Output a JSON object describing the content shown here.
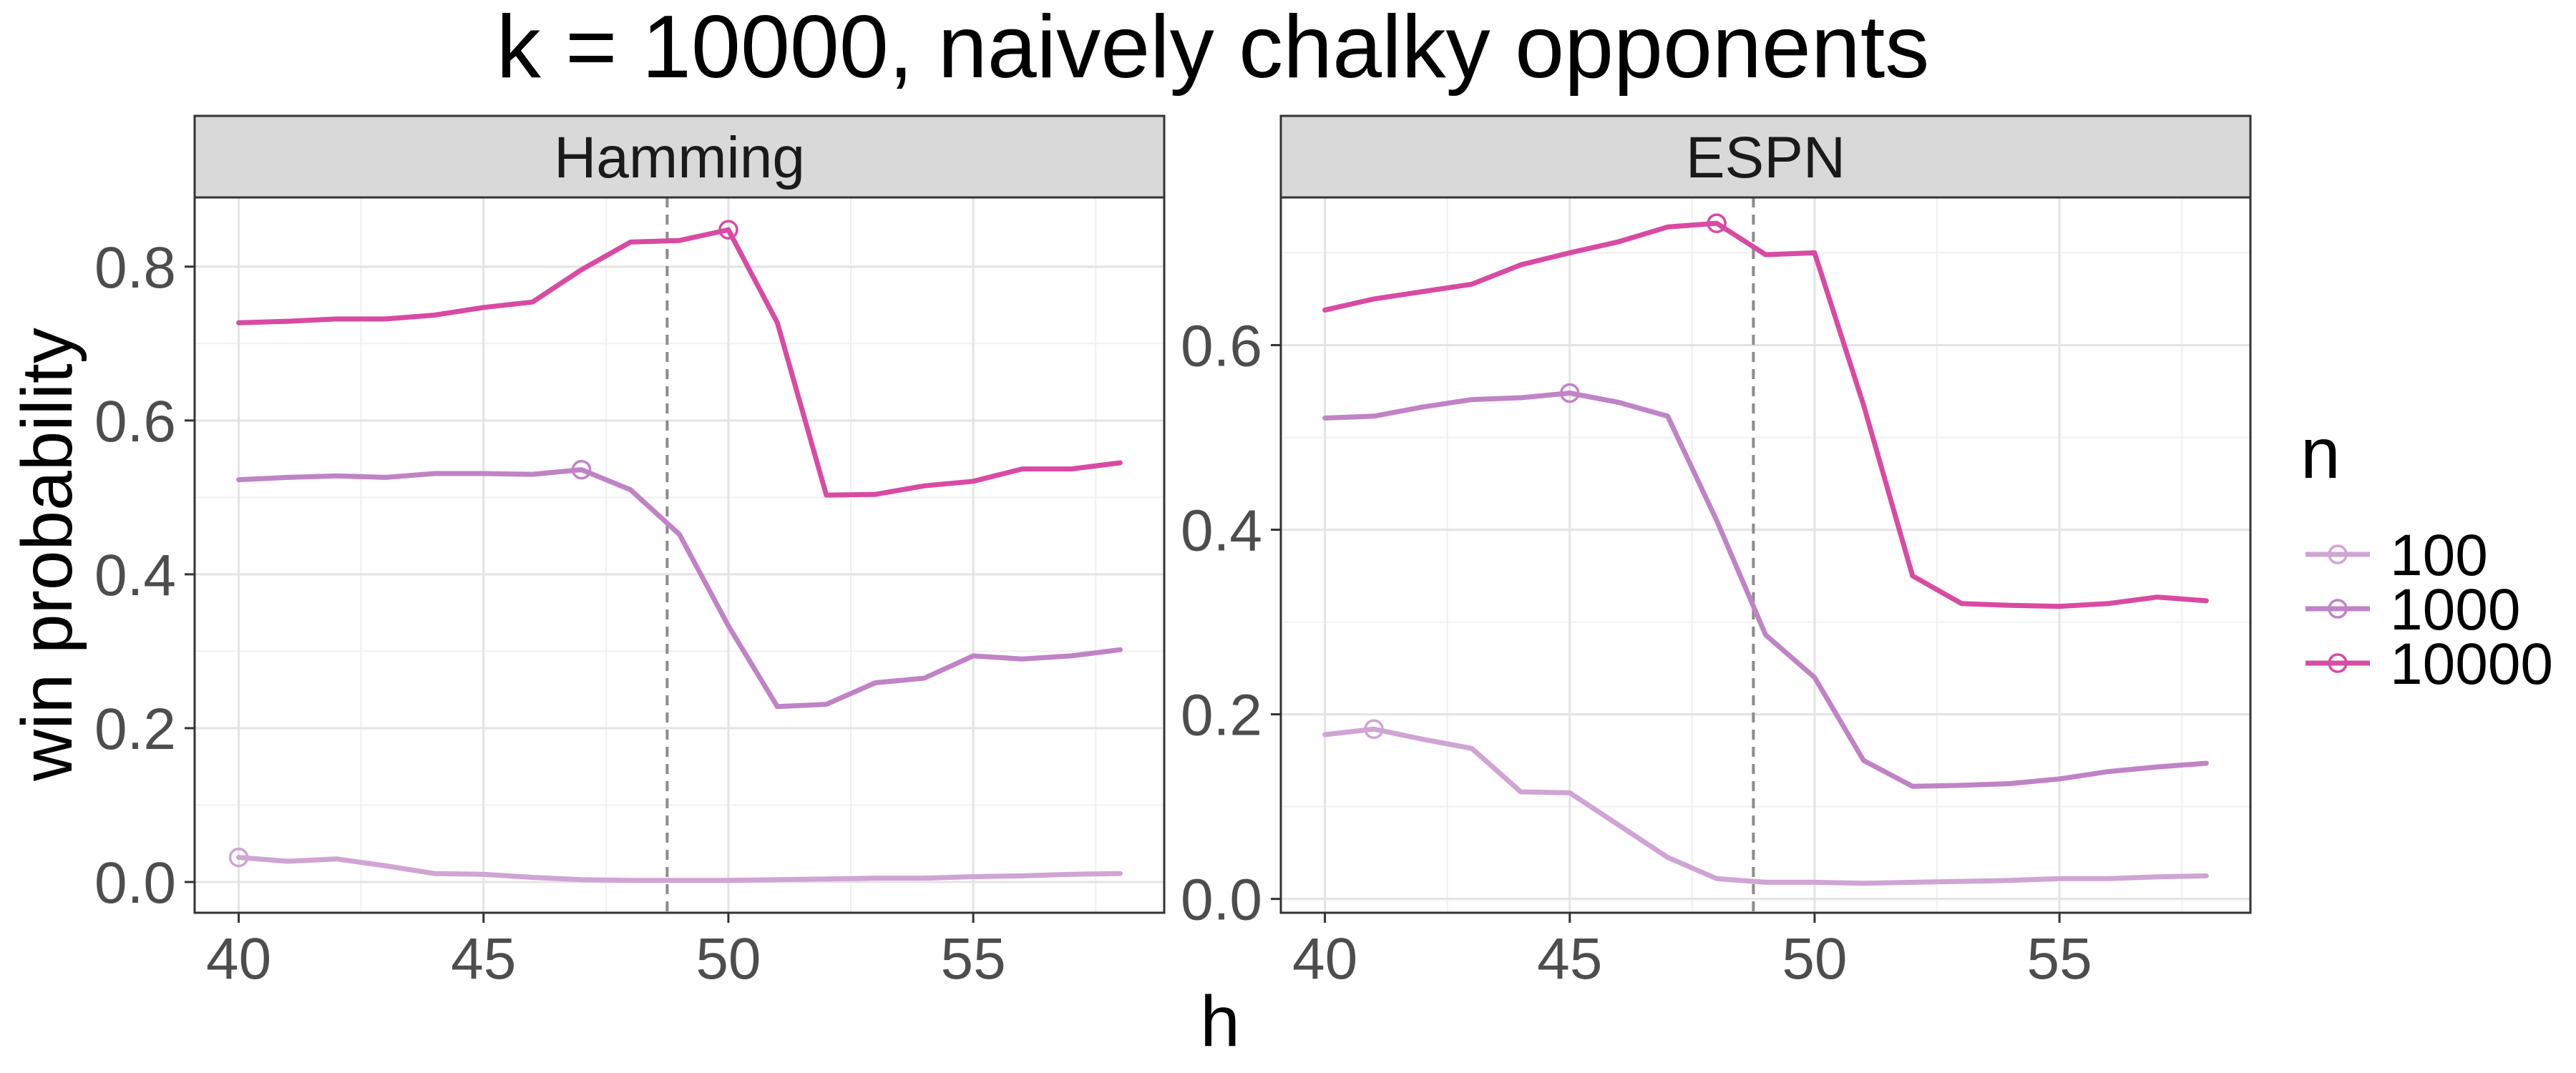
{
  "chart_data": {
    "type": "line",
    "title": "k = 10000, naively chalky opponents",
    "xlabel": "h",
    "ylabel": "win probability",
    "legend_title": "n",
    "legend_position": "right",
    "grid": true,
    "reference_line_x": 48.75,
    "series_styles": [
      {
        "name": "100",
        "color": "#d0a4d4"
      },
      {
        "name": "1000",
        "color": "#c083c6"
      },
      {
        "name": "10000",
        "color": "#d94aa3"
      }
    ],
    "panels": [
      {
        "strip": "Hamming",
        "x": [
          40,
          41,
          42,
          43,
          44,
          45,
          46,
          47,
          48,
          49,
          50,
          51,
          52,
          53,
          54,
          55,
          56,
          57,
          58
        ],
        "xlim": [
          39.1,
          58.9
        ],
        "ylim": [
          -0.04,
          0.89
        ],
        "xticks": [
          "40",
          "45",
          "50",
          "55"
        ],
        "yticks": [
          "0.0",
          "0.2",
          "0.4",
          "0.6",
          "0.8"
        ],
        "series": [
          {
            "name": "100",
            "values": [
              0.032,
              0.027,
              0.03,
              0.021,
              0.011,
              0.01,
              0.006,
              0.003,
              0.002,
              0.002,
              0.002,
              0.003,
              0.004,
              0.005,
              0.005,
              0.007,
              0.008,
              0.01,
              0.011
            ],
            "max_marker_x": 40
          },
          {
            "name": "1000",
            "values": [
              0.523,
              0.526,
              0.528,
              0.526,
              0.531,
              0.531,
              0.53,
              0.536,
              0.51,
              0.452,
              0.333,
              0.228,
              0.231,
              0.259,
              0.265,
              0.294,
              0.29,
              0.294,
              0.302
            ],
            "max_marker_x": 47
          },
          {
            "name": "10000",
            "values": [
              0.727,
              0.729,
              0.732,
              0.732,
              0.737,
              0.747,
              0.754,
              0.796,
              0.832,
              0.834,
              0.848,
              0.727,
              0.503,
              0.504,
              0.515,
              0.521,
              0.537,
              0.537,
              0.545
            ],
            "max_marker_x": 50
          }
        ]
      },
      {
        "strip": "ESPN",
        "x": [
          40,
          41,
          42,
          43,
          44,
          45,
          46,
          47,
          48,
          49,
          50,
          51,
          52,
          53,
          54,
          55,
          56,
          57,
          58
        ],
        "xlim": [
          39.1,
          58.9
        ],
        "ylim": [
          -0.015,
          0.76
        ],
        "xticks": [
          "40",
          "45",
          "50",
          "55"
        ],
        "yticks": [
          "0.0",
          "0.2",
          "0.4",
          "0.6"
        ],
        "series": [
          {
            "name": "100",
            "values": [
              0.178,
              0.184,
              0.173,
              0.163,
              0.116,
              0.115,
              0.08,
              0.045,
              0.022,
              0.018,
              0.018,
              0.017,
              0.018,
              0.019,
              0.02,
              0.022,
              0.022,
              0.024,
              0.025
            ],
            "max_marker_x": 41
          },
          {
            "name": "1000",
            "values": [
              0.521,
              0.523,
              0.533,
              0.541,
              0.543,
              0.548,
              0.538,
              0.523,
              0.41,
              0.286,
              0.24,
              0.15,
              0.122,
              0.123,
              0.125,
              0.13,
              0.138,
              0.143,
              0.147
            ],
            "max_marker_x": 45
          },
          {
            "name": "10000",
            "values": [
              0.638,
              0.65,
              0.658,
              0.666,
              0.687,
              0.7,
              0.712,
              0.728,
              0.732,
              0.698,
              0.7,
              0.535,
              0.35,
              0.32,
              0.318,
              0.317,
              0.32,
              0.327,
              0.323
            ],
            "max_marker_x": 48
          }
        ]
      }
    ]
  }
}
